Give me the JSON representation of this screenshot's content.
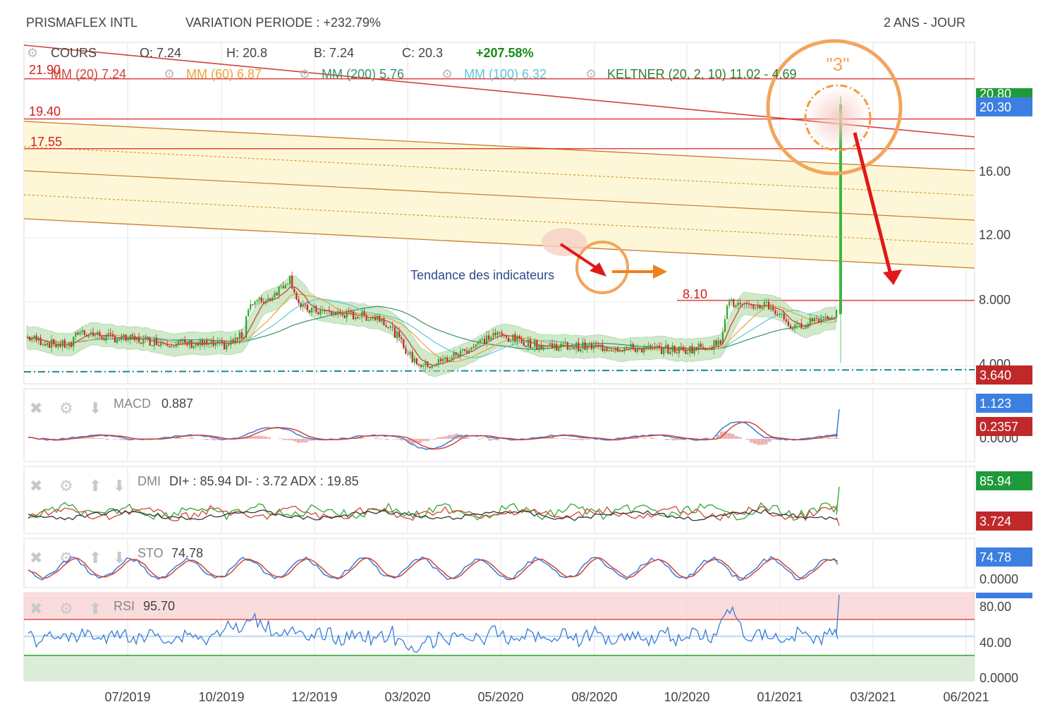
{
  "header": {
    "ticker": "PRISMAFLEX INTL",
    "variation": "VARIATION PERIODE : +232.79%",
    "period": "2 ANS - JOUR"
  },
  "legend": {
    "cours": "COURS",
    "open": "O: 7.24",
    "high": "H: 20.8",
    "low": "B: 7.24",
    "close": "C: 20.3",
    "change": "+207.58%",
    "mm20": "MM (20) 7.24",
    "mm60": "MM (60) 6.87",
    "mm200": "MM (200) 5.76",
    "mm100": "MM (100) 6.32",
    "keltner": "KELTNER (20, 2, 10) 11.02 - 4.69"
  },
  "annotations": {
    "level_top": "21.90",
    "level_1940": "19.40",
    "level_1755": "17.55",
    "level_810": "8.10",
    "circle_label": "\"3\"",
    "indicator_trend": "Tendance des indicateurs"
  },
  "price_axis": {
    "ticks": [
      "16.00",
      "12.00",
      "8.000",
      "4.000"
    ],
    "badge_high": "20.30",
    "badge_high_top": "20.80",
    "badge_low": "3.640"
  },
  "x_axis": {
    "labels": [
      "07/2019",
      "10/2019",
      "12/2019",
      "03/2020",
      "05/2020",
      "08/2020",
      "10/2020",
      "01/2021",
      "03/2021",
      "06/2021"
    ]
  },
  "panels": {
    "macd": {
      "label": "MACD",
      "value": "0.887",
      "badge1": "1.123",
      "badge2": "0.2357",
      "axis_zero": "0.0000"
    },
    "dmi": {
      "label": "DMI",
      "value": "DI+ : 85.94 DI- : 3.72 ADX : 19.85",
      "badge1": "85.94",
      "badge2": "3.724"
    },
    "sto": {
      "label": "STO",
      "value": "74.78",
      "badge1": "74.78",
      "axis_zero": "0.0000"
    },
    "rsi": {
      "label": "RSI",
      "value": "95.70",
      "tick80": "80.00",
      "tick40": "40.00",
      "tick0": "0.0000",
      "badge_partial": "95.70"
    }
  },
  "colors": {
    "up": "#2ea82e",
    "down": "#c0282a",
    "mm20": "#d0453a",
    "mm60": "#e8a33a",
    "mm200": "#3a8f6a",
    "mm100": "#5cc6d4",
    "keltner": "#2e7d32",
    "support": "#1a8a8a",
    "resistance": "#e02020",
    "channel": "#c97a2a",
    "accent": "#2f4a8a"
  },
  "chart_data": {
    "type": "candlestick",
    "x_start": "2019-05",
    "x_end": "2021-06",
    "ylim": [
      3.2,
      22.5
    ],
    "levels": [
      21.9,
      19.4,
      17.55,
      8.1
    ],
    "support": 3.64,
    "last": {
      "open": 7.24,
      "high": 20.8,
      "low": 7.24,
      "close": 20.3
    }
  }
}
